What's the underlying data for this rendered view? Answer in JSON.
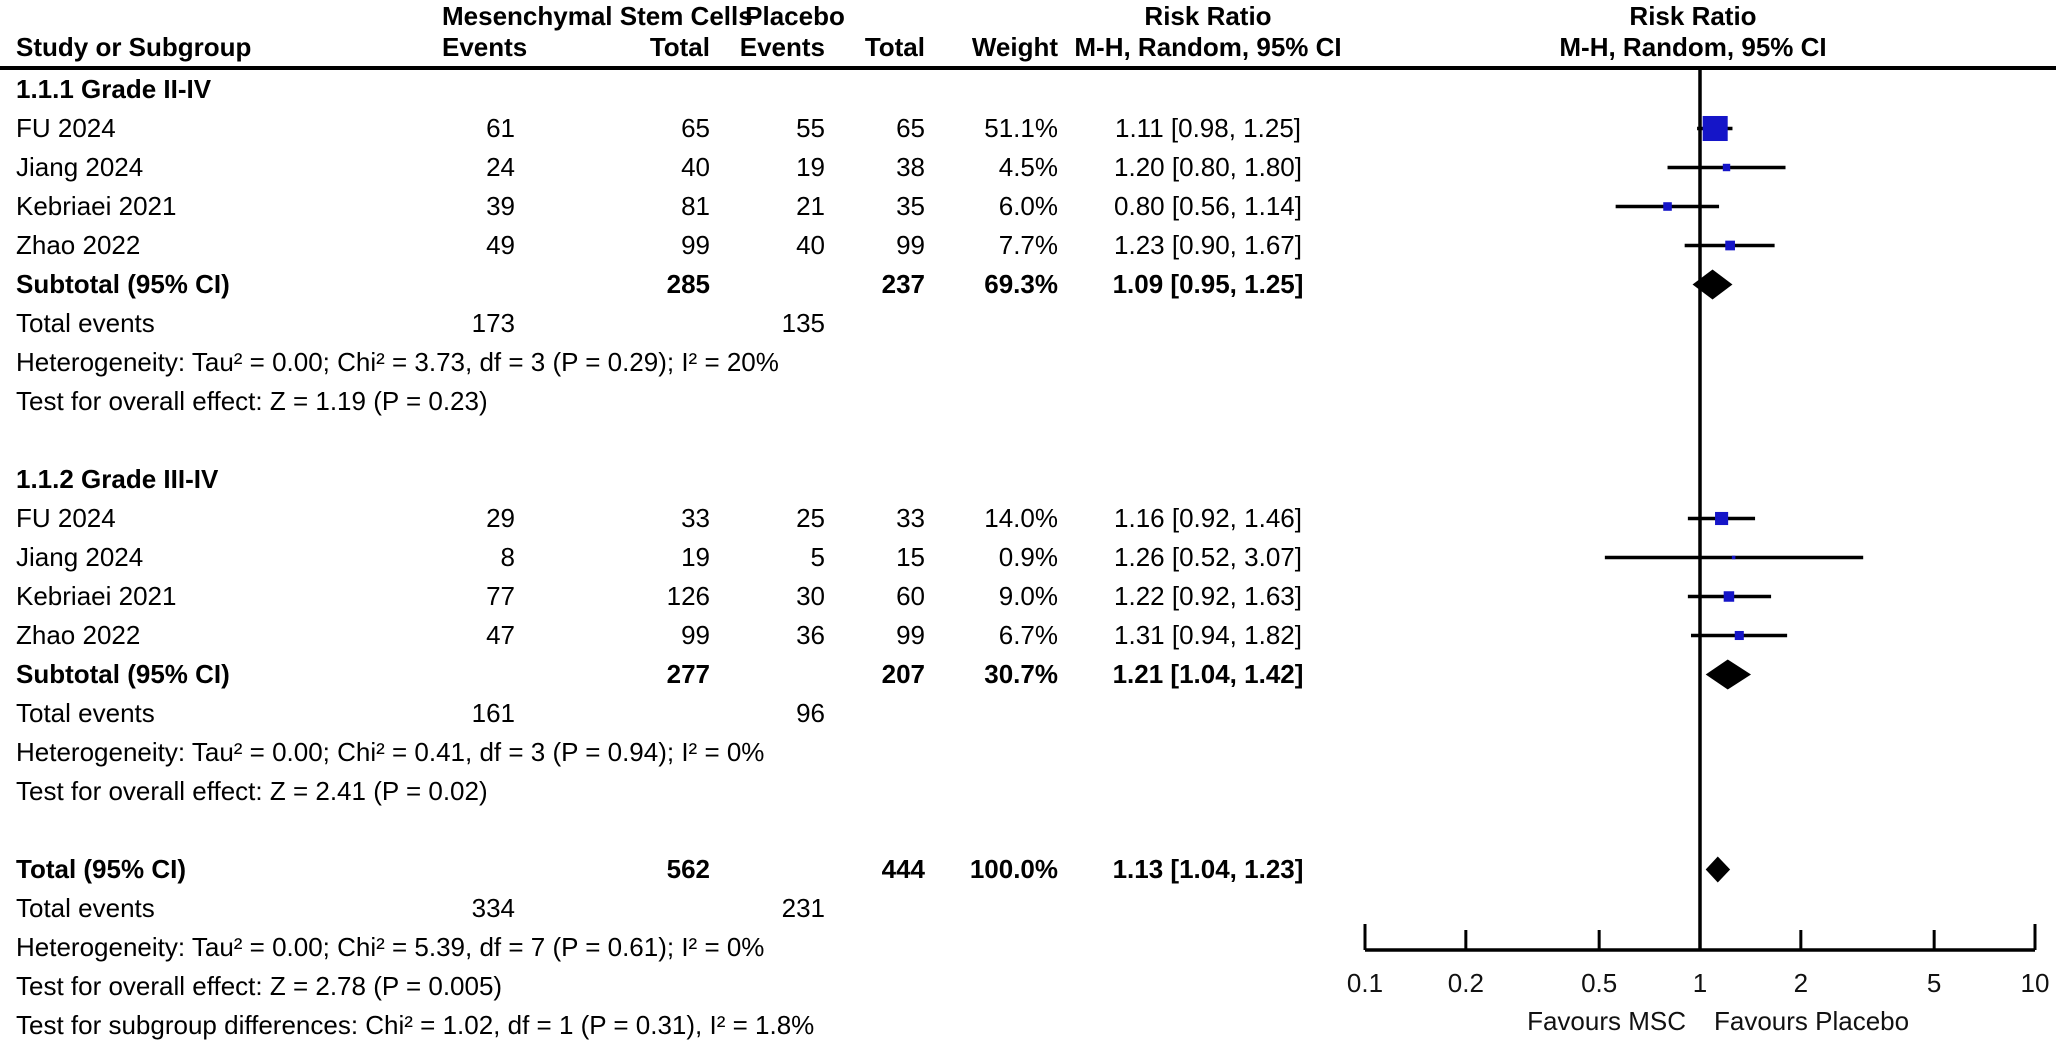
{
  "chart_data": {
    "type": "forest",
    "effect_measure": "Risk Ratio",
    "group_headers": {
      "treatment": "Mesenchymal Stem Cells",
      "control": "Placebo",
      "effect": "Risk Ratio"
    },
    "columns": {
      "study": "Study or Subgroup",
      "events": "Events",
      "total": "Total",
      "weight": "Weight",
      "estimate": "M-H, Random, 95% CI"
    },
    "labels": {
      "total_events": "Total events"
    },
    "groups": [
      {
        "title": "1.1.1 Grade II-IV",
        "studies": [
          {
            "study": "FU 2024",
            "msc_events": "61",
            "msc_total": "65",
            "placebo_events": "55",
            "placebo_total": "65",
            "weight": "51.1%",
            "weight_value": 51.1,
            "rr": 1.11,
            "ci_low": 0.98,
            "ci_high": 1.25,
            "estimate_text": "1.11 [0.98, 1.25]"
          },
          {
            "study": "Jiang 2024",
            "msc_events": "24",
            "msc_total": "40",
            "placebo_events": "19",
            "placebo_total": "38",
            "weight": "4.5%",
            "weight_value": 4.5,
            "rr": 1.2,
            "ci_low": 0.8,
            "ci_high": 1.8,
            "estimate_text": "1.20 [0.80, 1.80]"
          },
          {
            "study": "Kebriaei 2021",
            "msc_events": "39",
            "msc_total": "81",
            "placebo_events": "21",
            "placebo_total": "35",
            "weight": "6.0%",
            "weight_value": 6.0,
            "rr": 0.8,
            "ci_low": 0.56,
            "ci_high": 1.14,
            "estimate_text": "0.80 [0.56, 1.14]"
          },
          {
            "study": "Zhao 2022",
            "msc_events": "49",
            "msc_total": "99",
            "placebo_events": "40",
            "placebo_total": "99",
            "weight": "7.7%",
            "weight_value": 7.7,
            "rr": 1.23,
            "ci_low": 0.9,
            "ci_high": 1.67,
            "estimate_text": "1.23 [0.90, 1.67]"
          }
        ],
        "subtotal": {
          "label": "Subtotal (95% CI)",
          "msc_total": "285",
          "placebo_total": "237",
          "weight": "69.3%",
          "rr": 1.09,
          "ci_low": 0.95,
          "ci_high": 1.25,
          "estimate_text": "1.09 [0.95, 1.25]"
        },
        "total_events": {
          "msc": "173",
          "placebo": "135"
        },
        "heterogeneity": "Heterogeneity: Tau² = 0.00; Chi² = 3.73, df = 3 (P = 0.29); I² = 20%",
        "overall_effect": "Test for overall effect: Z = 1.19 (P = 0.23)"
      },
      {
        "title": "1.1.2 Grade III-IV",
        "studies": [
          {
            "study": "FU 2024",
            "msc_events": "29",
            "msc_total": "33",
            "placebo_events": "25",
            "placebo_total": "33",
            "weight": "14.0%",
            "weight_value": 14.0,
            "rr": 1.16,
            "ci_low": 0.92,
            "ci_high": 1.46,
            "estimate_text": "1.16 [0.92, 1.46]"
          },
          {
            "study": "Jiang 2024",
            "msc_events": "8",
            "msc_total": "19",
            "placebo_events": "5",
            "placebo_total": "15",
            "weight": "0.9%",
            "weight_value": 0.9,
            "rr": 1.26,
            "ci_low": 0.52,
            "ci_high": 3.07,
            "estimate_text": "1.26 [0.52, 3.07]"
          },
          {
            "study": "Kebriaei 2021",
            "msc_events": "77",
            "msc_total": "126",
            "placebo_events": "30",
            "placebo_total": "60",
            "weight": "9.0%",
            "weight_value": 9.0,
            "rr": 1.22,
            "ci_low": 0.92,
            "ci_high": 1.63,
            "estimate_text": "1.22 [0.92, 1.63]"
          },
          {
            "study": "Zhao 2022",
            "msc_events": "47",
            "msc_total": "99",
            "placebo_events": "36",
            "placebo_total": "99",
            "weight": "6.7%",
            "weight_value": 6.7,
            "rr": 1.31,
            "ci_low": 0.94,
            "ci_high": 1.82,
            "estimate_text": "1.31 [0.94, 1.82]"
          }
        ],
        "subtotal": {
          "label": "Subtotal (95% CI)",
          "msc_total": "277",
          "placebo_total": "207",
          "weight": "30.7%",
          "rr": 1.21,
          "ci_low": 1.04,
          "ci_high": 1.42,
          "estimate_text": "1.21 [1.04, 1.42]"
        },
        "total_events": {
          "msc": "161",
          "placebo": "96"
        },
        "heterogeneity": "Heterogeneity: Tau² = 0.00; Chi² = 0.41, df = 3 (P = 0.94); I² = 0%",
        "overall_effect": "Test for overall effect: Z = 2.41 (P = 0.02)"
      }
    ],
    "total": {
      "label": "Total (95% CI)",
      "msc_total": "562",
      "placebo_total": "444",
      "weight": "100.0%",
      "rr": 1.13,
      "ci_low": 1.04,
      "ci_high": 1.23,
      "estimate_text": "1.13 [1.04, 1.23]",
      "total_events": {
        "msc": "334",
        "placebo": "231"
      },
      "heterogeneity": "Heterogeneity: Tau² = 0.00; Chi² = 5.39, df = 7 (P = 0.61); I² = 0%",
      "overall_effect": "Test for overall effect: Z = 2.78 (P = 0.005)",
      "subgroup_difference": "Test for subgroup differences: Chi² = 1.02, df = 1 (P = 0.31), I² = 1.8%"
    },
    "x_axis": {
      "scale": "log",
      "min": 0.1,
      "max": 10,
      "ticks": [
        0.1,
        0.2,
        0.5,
        1,
        2,
        5,
        10
      ],
      "favours_left": "Favours MSC",
      "favours_right": "Favours Placebo"
    },
    "style": {
      "square_color": "#1515C8",
      "diamond_color": "#000000",
      "line_color": "#000000"
    }
  }
}
